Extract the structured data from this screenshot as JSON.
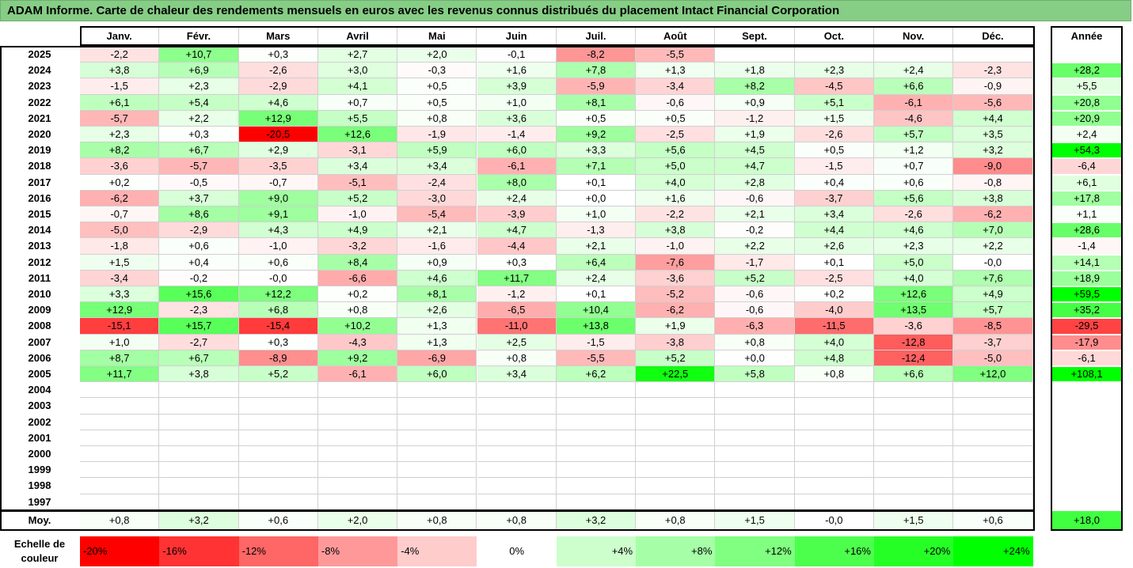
{
  "title": "ADAM Informe. Carte de chaleur des rendements mensuels en euros avec les revenus connus distribués du placement Intact Financial Corporation",
  "chart_data": {
    "type": "heatmap",
    "columns": [
      "Janv.",
      "Févr.",
      "Mars",
      "Avril",
      "Mai",
      "Juin",
      "Juil.",
      "Août",
      "Sept.",
      "Oct.",
      "Nov.",
      "Déc."
    ],
    "annual_header": "Année",
    "rows": [
      {
        "year": "2025",
        "values": [
          "-2,2",
          "+10,7",
          "+0,3",
          "+2,7",
          "+2,0",
          "-0,1",
          "-8,2",
          "-5,5",
          "",
          "",
          "",
          ""
        ],
        "annual": ""
      },
      {
        "year": "2024",
        "values": [
          "+3,8",
          "+6,9",
          "-2,6",
          "+3,0",
          "-0,3",
          "+1,6",
          "+7,8",
          "+1,3",
          "+1,8",
          "+2,3",
          "+2,4",
          "-2,3"
        ],
        "annual": "+28,2"
      },
      {
        "year": "2023",
        "values": [
          "-1,5",
          "+2,3",
          "-2,9",
          "+4,1",
          "+0,5",
          "+3,9",
          "-5,9",
          "-3,4",
          "+8,2",
          "-4,5",
          "+6,6",
          "-0,9"
        ],
        "annual": "+5,5"
      },
      {
        "year": "2022",
        "values": [
          "+6,1",
          "+5,4",
          "+4,6",
          "+0,7",
          "+0,5",
          "+1,0",
          "+8,1",
          "-0,6",
          "+0,9",
          "+5,1",
          "-6,1",
          "-5,6"
        ],
        "annual": "+20,8"
      },
      {
        "year": "2021",
        "values": [
          "-5,7",
          "+2,2",
          "+12,9",
          "+5,5",
          "+0,8",
          "+3,6",
          "+0,5",
          "+0,5",
          "-1,2",
          "+1,5",
          "-4,6",
          "+4,4"
        ],
        "annual": "+20,9"
      },
      {
        "year": "2020",
        "values": [
          "+2,3",
          "+0,3",
          "-20,5",
          "+12,6",
          "-1,9",
          "-1,4",
          "+9,2",
          "-2,5",
          "+1,9",
          "-2,6",
          "+5,7",
          "+3,5"
        ],
        "annual": "+2,4"
      },
      {
        "year": "2019",
        "values": [
          "+8,2",
          "+6,7",
          "+2,9",
          "-3,1",
          "+5,9",
          "+6,0",
          "+3,3",
          "+5,6",
          "+4,5",
          "+0,5",
          "+1,2",
          "+3,2"
        ],
        "annual": "+54,3"
      },
      {
        "year": "2018",
        "values": [
          "-3,6",
          "-5,7",
          "-3,5",
          "+3,4",
          "+3,4",
          "-6,1",
          "+7,1",
          "+5,0",
          "+4,7",
          "-1,5",
          "+0,7",
          "-9,0"
        ],
        "annual": "-6,4"
      },
      {
        "year": "2017",
        "values": [
          "+0,2",
          "-0,5",
          "-0,7",
          "-5,1",
          "-2,4",
          "+8,0",
          "+0,1",
          "+4,0",
          "+2,8",
          "+0,4",
          "+0,6",
          "-0,8"
        ],
        "annual": "+6,1"
      },
      {
        "year": "2016",
        "values": [
          "-6,2",
          "+3,7",
          "+9,0",
          "+5,2",
          "-3,0",
          "+2,4",
          "+0,0",
          "+1,6",
          "-0,6",
          "-3,7",
          "+5,6",
          "+3,8"
        ],
        "annual": "+17,8"
      },
      {
        "year": "2015",
        "values": [
          "-0,7",
          "+8,6",
          "+9,1",
          "-1,0",
          "-5,4",
          "-3,9",
          "+1,0",
          "-2,2",
          "+2,1",
          "+3,4",
          "-2,6",
          "-6,2"
        ],
        "annual": "+1,1"
      },
      {
        "year": "2014",
        "values": [
          "-5,0",
          "-2,9",
          "+4,3",
          "+4,9",
          "+2,1",
          "+4,7",
          "-1,3",
          "+3,8",
          "-0,2",
          "+4,4",
          "+4,6",
          "+7,0"
        ],
        "annual": "+28,6"
      },
      {
        "year": "2013",
        "values": [
          "-1,8",
          "+0,6",
          "-1,0",
          "-3,2",
          "-1,6",
          "-4,4",
          "+2,1",
          "-1,0",
          "+2,2",
          "+2,6",
          "+2,3",
          "+2,2"
        ],
        "annual": "-1,4"
      },
      {
        "year": "2012",
        "values": [
          "+1,5",
          "+0,4",
          "+0,6",
          "+8,4",
          "+0,9",
          "+0,3",
          "+6,4",
          "-7,6",
          "-1,7",
          "+0,1",
          "+5,0",
          "-0,0"
        ],
        "annual": "+14,1"
      },
      {
        "year": "2011",
        "values": [
          "-3,4",
          "-0,2",
          "-0,0",
          "-6,6",
          "+4,6",
          "+11,7",
          "+2,4",
          "-3,6",
          "+5,2",
          "-2,5",
          "+4,0",
          "+7,6"
        ],
        "annual": "+18,9"
      },
      {
        "year": "2010",
        "values": [
          "+3,3",
          "+15,6",
          "+12,2",
          "+0,2",
          "+8,1",
          "-1,2",
          "+0,1",
          "-5,2",
          "-0,6",
          "+0,2",
          "+12,6",
          "+4,9"
        ],
        "annual": "+59,5"
      },
      {
        "year": "2009",
        "values": [
          "+12,9",
          "-2,3",
          "+6,8",
          "+0,8",
          "+2,6",
          "-6,5",
          "+10,4",
          "-6,2",
          "-0,6",
          "-4,0",
          "+13,5",
          "+5,7"
        ],
        "annual": "+35,2"
      },
      {
        "year": "2008",
        "values": [
          "-15,1",
          "+15,7",
          "-15,4",
          "+10,2",
          "+1,3",
          "-11,0",
          "+13,8",
          "+1,9",
          "-6,3",
          "-11,5",
          "-3,6",
          "-8,5"
        ],
        "annual": "-29,5"
      },
      {
        "year": "2007",
        "values": [
          "+1,0",
          "-2,7",
          "+0,3",
          "-4,3",
          "+1,3",
          "+2,5",
          "-1,5",
          "-3,8",
          "+0,8",
          "+4,0",
          "-12,8",
          "-3,7"
        ],
        "annual": "-17,9"
      },
      {
        "year": "2006",
        "values": [
          "+8,7",
          "+6,7",
          "-8,9",
          "+9,2",
          "-6,9",
          "+0,8",
          "-5,5",
          "+5,2",
          "+0,0",
          "+4,8",
          "-12,4",
          "-5,0"
        ],
        "annual": "-6,1"
      },
      {
        "year": "2005",
        "values": [
          "+11,7",
          "+3,8",
          "+5,2",
          "-6,1",
          "+6,0",
          "+3,4",
          "+6,2",
          "+22,5",
          "+5,8",
          "+0,8",
          "+6,6",
          "+12,0"
        ],
        "annual": "+108,1"
      },
      {
        "year": "2004",
        "values": [
          "",
          "",
          "",
          "",
          "",
          "",
          "",
          "",
          "",
          "",
          "",
          ""
        ],
        "annual": ""
      },
      {
        "year": "2003",
        "values": [
          "",
          "",
          "",
          "",
          "",
          "",
          "",
          "",
          "",
          "",
          "",
          ""
        ],
        "annual": ""
      },
      {
        "year": "2002",
        "values": [
          "",
          "",
          "",
          "",
          "",
          "",
          "",
          "",
          "",
          "",
          "",
          ""
        ],
        "annual": ""
      },
      {
        "year": "2001",
        "values": [
          "",
          "",
          "",
          "",
          "",
          "",
          "",
          "",
          "",
          "",
          "",
          ""
        ],
        "annual": ""
      },
      {
        "year": "2000",
        "values": [
          "",
          "",
          "",
          "",
          "",
          "",
          "",
          "",
          "",
          "",
          "",
          ""
        ],
        "annual": ""
      },
      {
        "year": "1999",
        "values": [
          "",
          "",
          "",
          "",
          "",
          "",
          "",
          "",
          "",
          "",
          "",
          ""
        ],
        "annual": ""
      },
      {
        "year": "1998",
        "values": [
          "",
          "",
          "",
          "",
          "",
          "",
          "",
          "",
          "",
          "",
          "",
          ""
        ],
        "annual": ""
      },
      {
        "year": "1997",
        "values": [
          "",
          "",
          "",
          "",
          "",
          "",
          "",
          "",
          "",
          "",
          "",
          ""
        ],
        "annual": ""
      }
    ],
    "average": {
      "label": "Moy.",
      "values": [
        "+0,8",
        "+3,2",
        "+0,6",
        "+2,0",
        "+0,8",
        "+0,8",
        "+3,2",
        "+0,8",
        "+1,5",
        "-0,0",
        "+1,5",
        "+0,6"
      ],
      "annual": "+18,0"
    },
    "legend": {
      "label": "Echelle de couleur",
      "items": [
        "-20%",
        "-16%",
        "-12%",
        "-8%",
        "-4%",
        "0%",
        "+4%",
        "+8%",
        "+12%",
        "+16%",
        "+20%",
        "+24%"
      ],
      "colors": [
        "#ff0000",
        "#ff3333",
        "#ff6666",
        "#ff9999",
        "#ffcccc",
        "#ffffff",
        "#ccffcc",
        "#a6ffa6",
        "#80ff80",
        "#4dff4d",
        "#26ff26",
        "#00ff00"
      ]
    },
    "color_scale": {
      "negative": "#ff0000",
      "neutral": "#ffffff",
      "positive": "#00ff00",
      "min": -20,
      "max": 24
    }
  }
}
